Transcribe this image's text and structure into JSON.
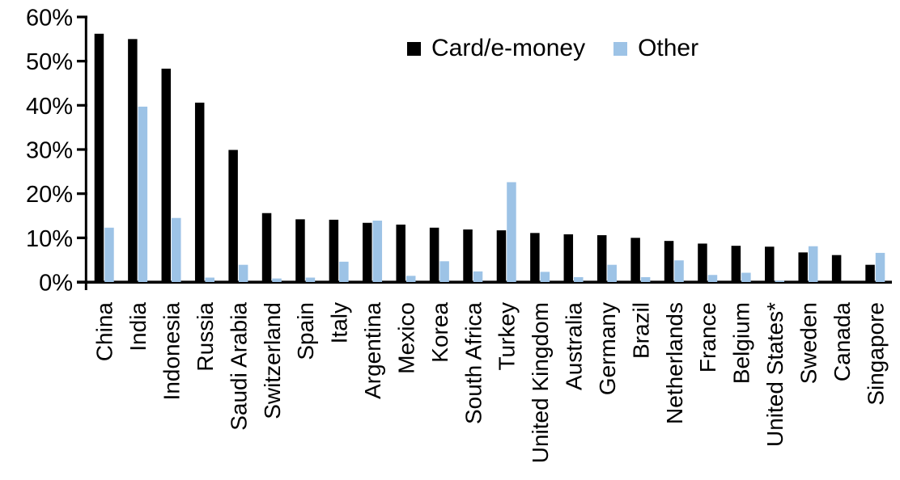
{
  "chart_data": {
    "type": "bar",
    "title": "",
    "categories": [
      "China",
      "India",
      "Indonesia",
      "Russia",
      "Saudi Arabia",
      "Switzerland",
      "Spain",
      "Italy",
      "Argentina",
      "Mexico",
      "Korea",
      "South Africa",
      "Turkey",
      "United Kingdom",
      "Australia",
      "Germany",
      "Brazil",
      "Netherlands",
      "France",
      "Belgium",
      "United States*",
      "Sweden",
      "Canada",
      "Singapore"
    ],
    "series": [
      {
        "name": "Card/e-money",
        "color": "#000000",
        "values": [
          56.2,
          55.0,
          48.3,
          40.6,
          29.9,
          15.6,
          14.2,
          14.1,
          13.4,
          13.0,
          12.3,
          11.9,
          11.7,
          11.1,
          10.8,
          10.6,
          10.0,
          9.3,
          8.7,
          8.2,
          8.0,
          6.7,
          6.1,
          3.9
        ]
      },
      {
        "name": "Other",
        "color": "#9DC3E6",
        "values": [
          12.3,
          39.7,
          14.5,
          1.0,
          3.9,
          0.8,
          1.0,
          4.6,
          13.9,
          1.4,
          4.7,
          2.4,
          22.6,
          2.3,
          1.1,
          3.9,
          1.1,
          4.9,
          1.6,
          2.1,
          0.3,
          8.1,
          0,
          6.6
        ]
      }
    ],
    "xlabel": "",
    "ylabel": "",
    "ylim": [
      0,
      60
    ],
    "ytick_values": [
      0,
      10,
      20,
      30,
      40,
      50,
      60
    ],
    "yticks": [
      "0%",
      "10%",
      "20%",
      "30%",
      "40%",
      "50%",
      "60%"
    ],
    "unit": "%",
    "grid": false,
    "legend_position": "top-center",
    "axis_color": "#000000",
    "background_color": "#ffffff"
  }
}
